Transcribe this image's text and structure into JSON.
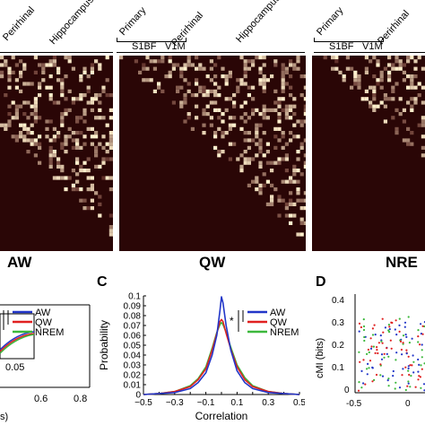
{
  "matrix_panels": [
    {
      "id": "aw",
      "condition": "AW",
      "region_labels": [
        "Perirhinal",
        "Hippocampus"
      ],
      "sub_labels": []
    },
    {
      "id": "qw",
      "condition": "QW",
      "region_labels": [
        "Primary",
        "Perirhinal",
        "Hippocampus"
      ],
      "sub_labels": [
        "S1BF",
        "V1M"
      ]
    },
    {
      "id": "nrem",
      "condition": "NRE",
      "region_labels": [
        "Primary",
        "Perirhinal"
      ],
      "sub_labels": [
        "S1BF",
        "V1M"
      ]
    }
  ],
  "panel_b": {
    "x_ticks": [
      "0.05"
    ],
    "x_axis_ticks": [
      "0.6",
      "0.8"
    ],
    "xlabel_fragment": "s)",
    "legend": [
      "AW",
      "QW",
      "NREM"
    ]
  },
  "panel_c": {
    "letter": "C",
    "legend_mark": "*"
  },
  "panel_d": {
    "letter": "D",
    "ylabel": "cMI (bits)",
    "y_ticks": [
      "0.4",
      "0.3",
      "0.2",
      "0.1",
      "0"
    ],
    "x_ticks": [
      "-0.5",
      "0"
    ]
  },
  "colors": {
    "AW": "#2236c8",
    "QW": "#e02020",
    "NREM": "#3cb83c",
    "matrix_bg": "#2a0606"
  },
  "chart_data": {
    "type": "line",
    "title": "",
    "xlabel": "Correlation",
    "ylabel": "Probability",
    "xlim": [
      -0.5,
      0.5
    ],
    "ylim": [
      0,
      0.1
    ],
    "x_ticks": [
      -0.5,
      -0.4,
      -0.3,
      -0.2,
      -0.1,
      0,
      0.1,
      0.2,
      0.3,
      0.4,
      0.5
    ],
    "y_ticks": [
      0,
      0.01,
      0.02,
      0.03,
      0.04,
      0.05,
      0.06,
      0.07,
      0.08,
      0.09,
      0.1
    ],
    "y_tick_labels": [
      "0",
      "0.01",
      "0.02",
      "0.03",
      "0.04",
      "0.05",
      "0.06",
      "0.07",
      "0.08",
      "0.09",
      "0.1"
    ],
    "x_tick_labels": [
      "−0.5",
      "",
      "−0.3",
      "",
      "−0.1",
      "",
      "0.1",
      "",
      "0.3",
      "",
      "0.5"
    ],
    "legend_placement": "top-right",
    "x": [
      -0.5,
      -0.4,
      -0.3,
      -0.2,
      -0.15,
      -0.1,
      -0.06,
      -0.03,
      -0.01,
      0,
      0.01,
      0.03,
      0.06,
      0.1,
      0.15,
      0.2,
      0.3,
      0.4,
      0.5
    ],
    "series": [
      {
        "name": "AW",
        "values": [
          0.0,
          0.001,
          0.002,
          0.006,
          0.012,
          0.022,
          0.04,
          0.06,
          0.085,
          0.099,
          0.093,
          0.07,
          0.045,
          0.024,
          0.012,
          0.006,
          0.002,
          0.001,
          0.0
        ]
      },
      {
        "name": "QW",
        "values": [
          0.0,
          0.001,
          0.003,
          0.008,
          0.015,
          0.026,
          0.045,
          0.062,
          0.074,
          0.076,
          0.074,
          0.062,
          0.046,
          0.028,
          0.015,
          0.008,
          0.003,
          0.001,
          0.0
        ]
      },
      {
        "name": "NREM",
        "values": [
          0.0,
          0.001,
          0.003,
          0.009,
          0.016,
          0.028,
          0.047,
          0.063,
          0.071,
          0.073,
          0.071,
          0.063,
          0.048,
          0.03,
          0.017,
          0.009,
          0.003,
          0.001,
          0.0
        ]
      }
    ]
  }
}
